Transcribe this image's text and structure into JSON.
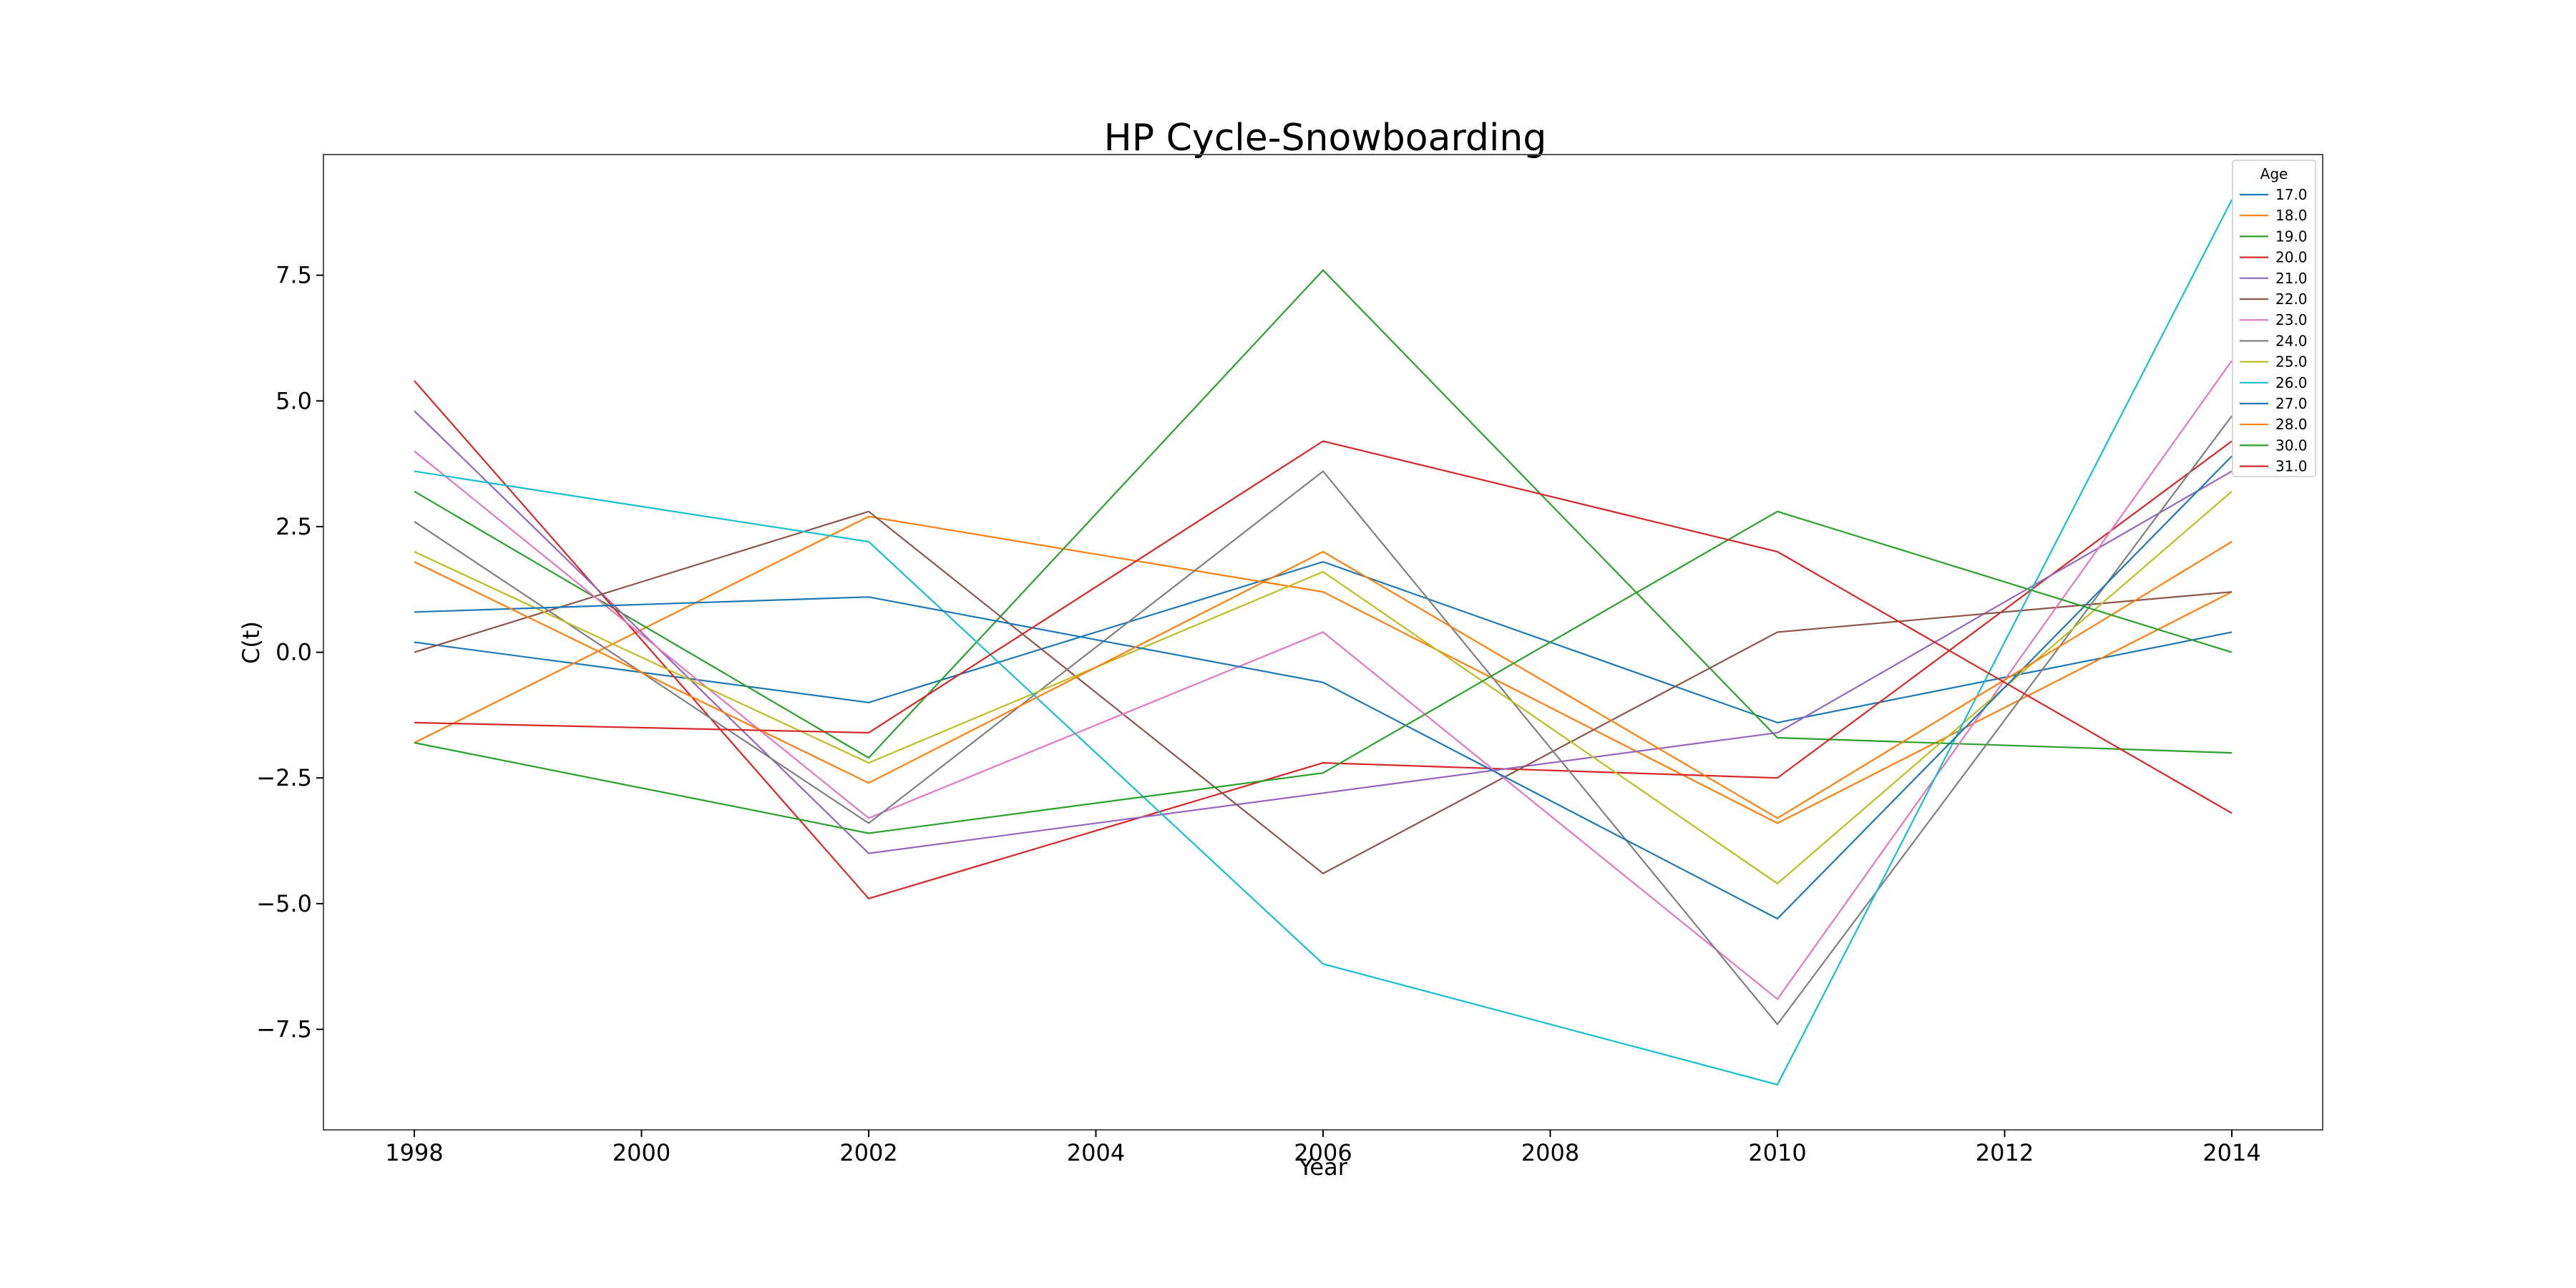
{
  "chart_data": {
    "type": "line",
    "title": "HP Cycle-Snowboarding",
    "xlabel": "Year",
    "ylabel": "C(t)",
    "x": [
      1998,
      2002,
      2006,
      2010,
      2014
    ],
    "xlim": [
      1997.2,
      2014.8
    ],
    "ylim": [
      -9.5,
      9.9
    ],
    "xticks": [
      1998,
      2000,
      2002,
      2004,
      2006,
      2008,
      2010,
      2012,
      2014
    ],
    "yticks": [
      -7.5,
      -5.0,
      -2.5,
      0.0,
      2.5,
      5.0,
      7.5
    ],
    "xtick_labels": [
      "1998",
      "2000",
      "2002",
      "2004",
      "2006",
      "2008",
      "2010",
      "2012",
      "2014"
    ],
    "ytick_labels": [
      "−7.5",
      "−5.0",
      "−2.5",
      "0.0",
      "2.5",
      "5.0",
      "7.5"
    ],
    "grid": false,
    "legend": {
      "title": "Age",
      "placement": "top-right"
    },
    "series": [
      {
        "name": "17.0",
        "color": "#1f77b4",
        "values": [
          0.2,
          -1.0,
          1.8,
          -1.4,
          0.4
        ]
      },
      {
        "name": "18.0",
        "color": "#ff7f0e",
        "values": [
          -1.8,
          2.7,
          1.2,
          -3.4,
          1.2
        ]
      },
      {
        "name": "19.0",
        "color": "#2ca02c",
        "values": [
          3.2,
          -2.1,
          7.6,
          -1.7,
          -2.0
        ]
      },
      {
        "name": "20.0",
        "color": "#d62728",
        "values": [
          5.4,
          -4.9,
          -2.2,
          -2.5,
          4.2
        ]
      },
      {
        "name": "21.0",
        "color": "#9467bd",
        "values": [
          4.8,
          -4.0,
          -2.8,
          -1.6,
          3.6
        ]
      },
      {
        "name": "22.0",
        "color": "#8c564b",
        "values": [
          0.0,
          2.8,
          -4.4,
          0.4,
          1.2
        ]
      },
      {
        "name": "23.0",
        "color": "#e377c2",
        "values": [
          4.0,
          -3.3,
          0.4,
          -6.9,
          5.8
        ]
      },
      {
        "name": "24.0",
        "color": "#7f7f7f",
        "values": [
          2.6,
          -3.4,
          3.6,
          -7.4,
          4.7
        ]
      },
      {
        "name": "25.0",
        "color": "#bcbd22",
        "values": [
          2.0,
          -2.2,
          1.6,
          -4.6,
          3.2
        ]
      },
      {
        "name": "26.0",
        "color": "#17becf",
        "values": [
          3.6,
          2.2,
          -6.2,
          -8.6,
          9.0
        ]
      },
      {
        "name": "27.0",
        "color": "#1f77b4",
        "values": [
          0.8,
          1.1,
          -0.6,
          -5.3,
          3.9
        ]
      },
      {
        "name": "28.0",
        "color": "#ff7f0e",
        "values": [
          1.8,
          -2.6,
          2.0,
          -3.3,
          2.2
        ]
      },
      {
        "name": "30.0",
        "color": "#2ca02c",
        "values": [
          -1.8,
          -3.6,
          -2.4,
          2.8,
          0.0
        ]
      },
      {
        "name": "31.0",
        "color": "#d62728",
        "values": [
          -1.4,
          -1.6,
          4.2,
          2.0,
          -3.2
        ]
      }
    ]
  }
}
